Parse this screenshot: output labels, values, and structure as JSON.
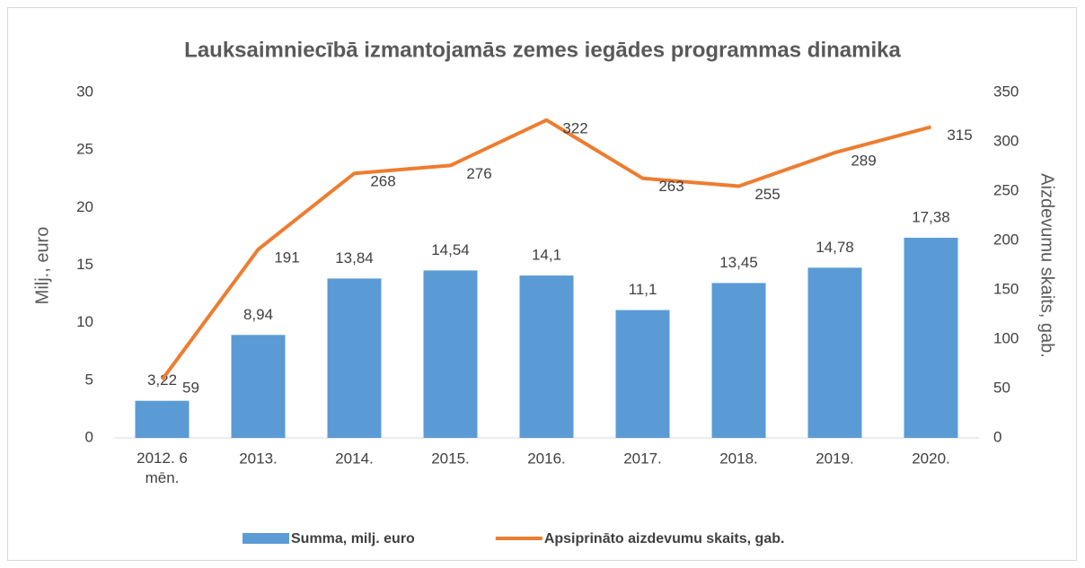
{
  "chart_data": {
    "type": "bar-line",
    "title": "Lauksaimniecībā izmantojamās zemes iegādes programmas dinamika",
    "categories": [
      "2012. 6 mēn.",
      "2013.",
      "2014.",
      "2015.",
      "2016.",
      "2017.",
      "2018.",
      "2019.",
      "2020."
    ],
    "y_label": "Milj., euro",
    "y2_label": "Aizdevumu skaits, gab.",
    "ylim": [
      0,
      30
    ],
    "yticks": [
      0,
      5,
      10,
      15,
      20,
      25,
      30
    ],
    "y2lim": [
      0,
      350
    ],
    "y2ticks": [
      0,
      50,
      100,
      150,
      200,
      250,
      300,
      350
    ],
    "legend": "bottom",
    "series": [
      {
        "name": "Summa, milj. euro",
        "type": "bar",
        "color": "#5b9bd5",
        "values": [
          3.22,
          8.94,
          13.84,
          14.54,
          14.1,
          11.1,
          13.45,
          14.78,
          17.38
        ],
        "value_labels": [
          "3,22",
          "8,94",
          "13,84",
          "14,54",
          "14,1",
          "11,1",
          "13,45",
          "14,78",
          "17,38"
        ]
      },
      {
        "name": "Apsiprināto aizdevumu skaits, gab.",
        "type": "line",
        "axis": "y2",
        "color": "#ed7d31",
        "values": [
          59,
          191,
          268,
          276,
          322,
          263,
          255,
          289,
          315
        ]
      }
    ]
  }
}
